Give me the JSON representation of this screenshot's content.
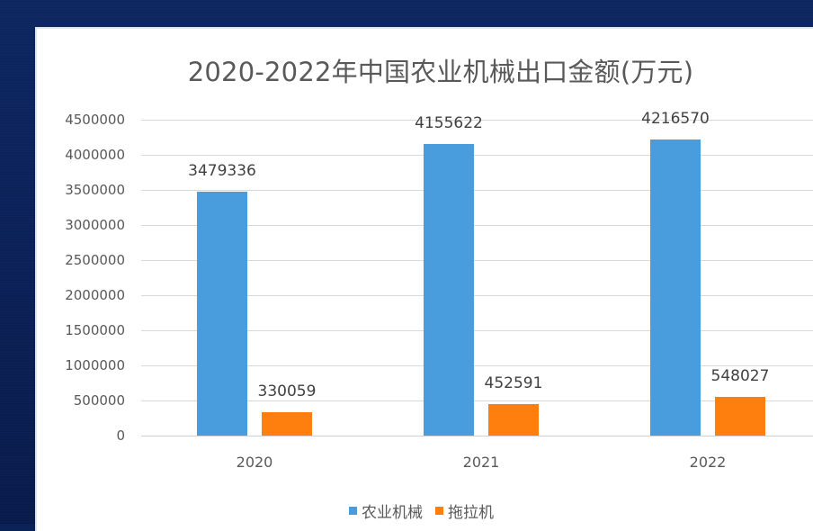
{
  "chart_data": {
    "type": "bar",
    "title": "2020-2022年中国农业机械出口金额(万元)",
    "categories": [
      "2020",
      "2021",
      "2022"
    ],
    "series": [
      {
        "name": "农业机械",
        "color": "#4a9ddc",
        "values": [
          3479336,
          4155622,
          4216570
        ]
      },
      {
        "name": "拖拉机",
        "color": "#ff7f0e",
        "values": [
          330059,
          452591,
          548027
        ]
      }
    ],
    "xlabel": "",
    "ylabel": "",
    "ylim": [
      0,
      4500000
    ],
    "yticks": [
      "0",
      "500000",
      "1000000",
      "1500000",
      "2000000",
      "2500000",
      "3000000",
      "3500000",
      "4000000",
      "4500000"
    ],
    "grid": true,
    "legend_position": "bottom",
    "data_labels": true
  },
  "colors": {
    "background": "#0b2259",
    "panel": "#ffffff",
    "series_0": "#4a9ddc",
    "series_1": "#ff7f0e"
  }
}
